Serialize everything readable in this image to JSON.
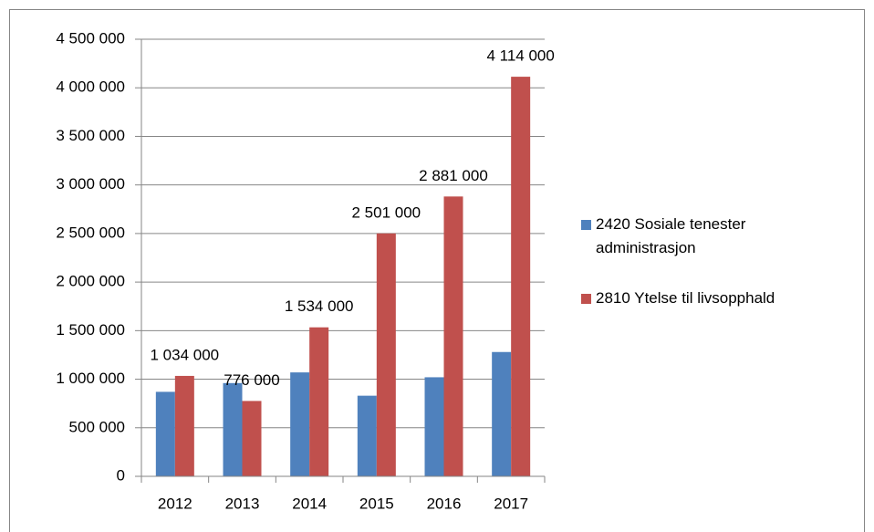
{
  "chart_data": {
    "type": "bar",
    "categories": [
      "2012",
      "2013",
      "2014",
      "2015",
      "2016",
      "2017"
    ],
    "series": [
      {
        "name": "2420 Sosiale tenester administrasjon",
        "color": "#4f81bd",
        "values": [
          870000,
          960000,
          1070000,
          830000,
          1020000,
          1280000
        ]
      },
      {
        "name": "2810 Ytelse til livsopphald",
        "color": "#c0504d",
        "values": [
          1034000,
          776000,
          1534000,
          2501000,
          2881000,
          4114000
        ],
        "value_labels": [
          "1 034 000",
          "776 000",
          "1 534 000",
          "2 501 000",
          "2 881 000",
          "4 114 000"
        ]
      }
    ],
    "ylim": [
      0,
      4500000
    ],
    "yticks": [
      0,
      {
        "value": 500000,
        "label": "500 000"
      },
      {
        "value": 1000000,
        "label": "1 000 000"
      },
      {
        "value": 1500000,
        "label": "1 500 000"
      },
      {
        "value": 2000000,
        "label": "2 000 000"
      },
      {
        "value": 2500000,
        "label": "2 500 000"
      },
      {
        "value": 3000000,
        "label": "3 000 000"
      },
      {
        "value": 3500000,
        "label": "3 500 000"
      },
      {
        "value": 4000000,
        "label": "4 000 000"
      },
      {
        "value": 4500000,
        "label": "4 500 000"
      }
    ],
    "grid": true,
    "legend": "right"
  }
}
